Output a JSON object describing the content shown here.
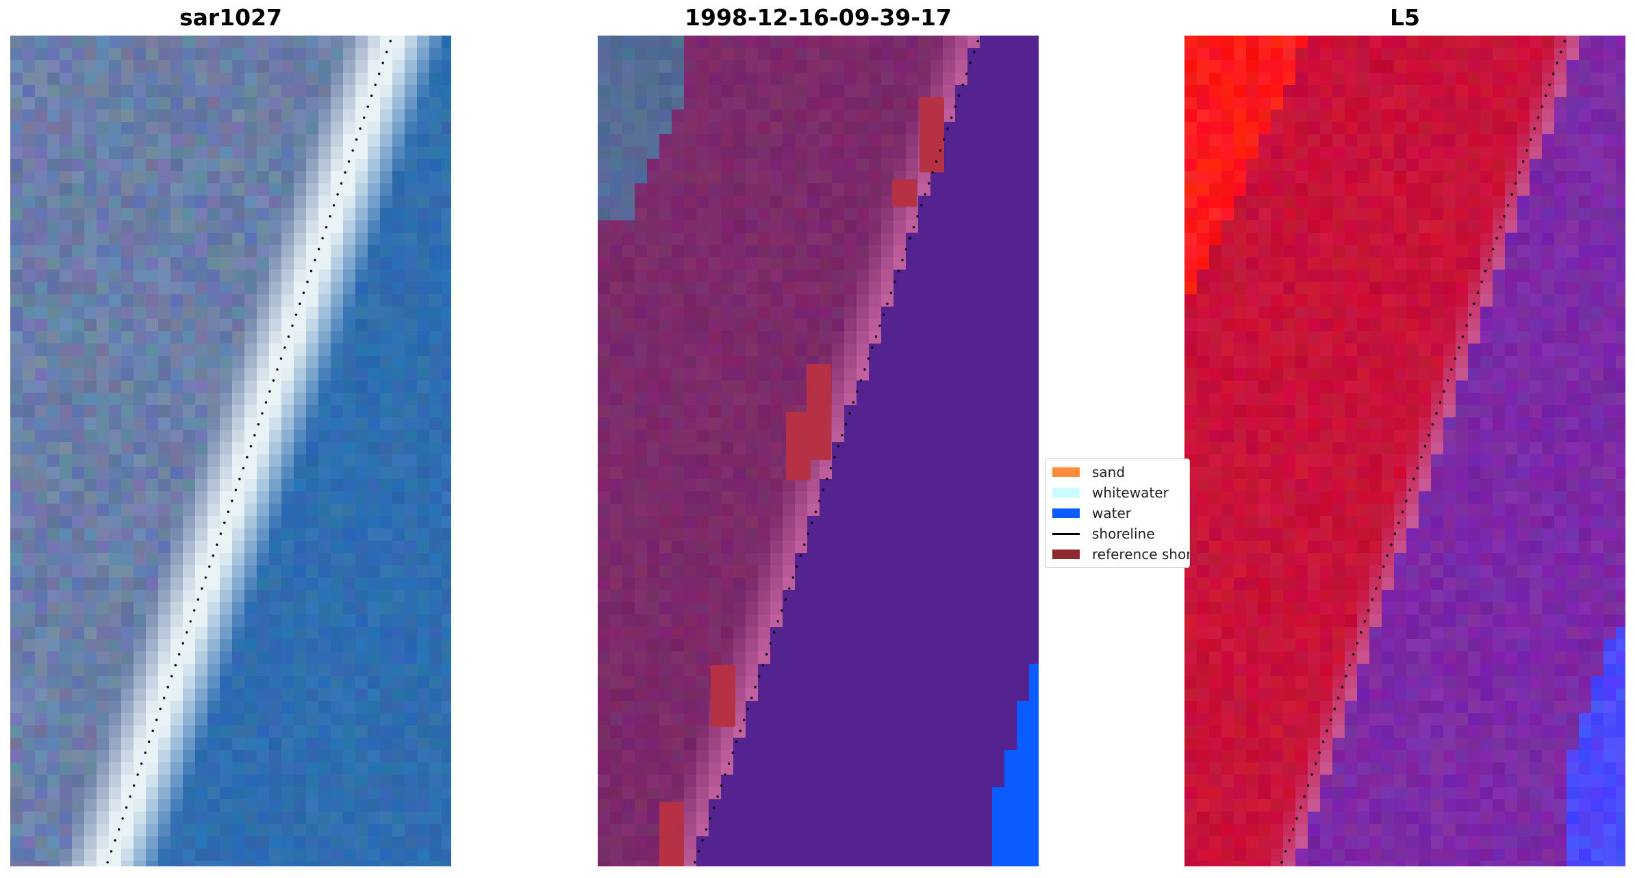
{
  "panels": [
    {
      "title": "sar1027"
    },
    {
      "title": "1998-12-16-09-39-17"
    },
    {
      "title": "L5"
    }
  ],
  "legend": {
    "items": [
      {
        "label": "sand",
        "type": "patch",
        "color": "#ff8c3a"
      },
      {
        "label": "whitewater",
        "type": "patch",
        "color": "#c8fcff"
      },
      {
        "label": "water",
        "type": "patch",
        "color": "#0a5cff"
      },
      {
        "label": "shoreline",
        "type": "line",
        "color": "#000000"
      },
      {
        "label": "reference shoreline",
        "type": "patch",
        "color": "#8e2a30"
      }
    ]
  },
  "colors": {
    "background": "#ffffff",
    "sar_land": "#6b7fa8",
    "sar_whitewater": "#e9f3f6",
    "sar_water": "#2f6eb0",
    "class_land": "#7c2a6a",
    "class_water": "#55238f",
    "class_water_blue": "#0a5cff",
    "class_reference": "#b73145",
    "l5_land": "#c8123a",
    "l5_bright_red": "#ff1a1a",
    "l5_water": "#7c2aa6",
    "l5_blue": "#4b4bff"
  }
}
